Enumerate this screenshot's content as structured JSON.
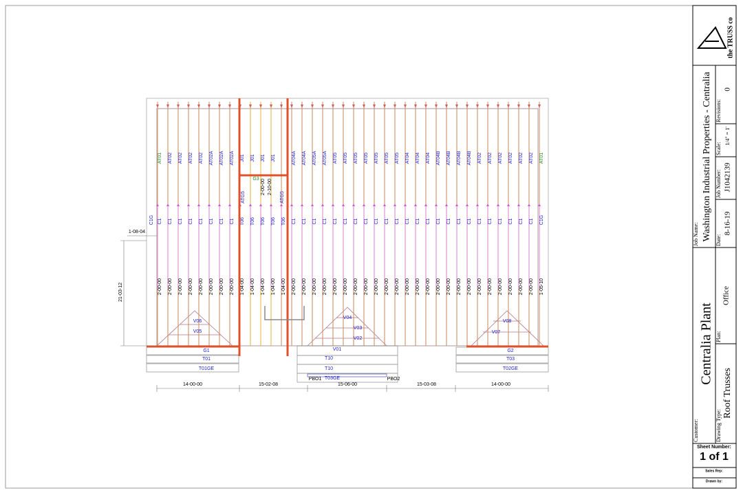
{
  "drawing": {
    "trusses": {
      "top": [
        "AT01",
        "AT02",
        "AT02",
        "AT02",
        "AT02",
        "AT02A",
        "AT02A",
        "AT02A",
        "J01",
        "J01",
        "J01",
        "J01",
        null,
        "AT04A",
        "AT04A",
        "AT05A",
        "AT05A",
        "AT05",
        "AT05",
        "AT05",
        "AT05",
        "AT05",
        "AT05",
        "AT05",
        "AT04",
        "AT04",
        "AT04",
        "AT04B",
        "AT04B",
        "AT04B",
        "AT04B",
        "AT02",
        "AT02",
        "AT02",
        "AT02",
        "AT02",
        "AT02",
        "AT01"
      ],
      "middle": [
        "C1",
        "C1",
        "C1",
        "C1",
        "C1",
        "C1",
        "C1",
        "C1",
        "T06",
        "T06",
        "T06",
        "T06",
        "T06",
        "C1",
        "C1",
        "C1",
        "C1",
        "C1",
        "C1",
        "C1",
        "C1",
        "C1",
        "C1",
        "C1",
        "C1",
        "C1",
        "C1",
        "C1",
        "C1",
        "C1",
        "C1",
        "C1",
        "C1",
        "C1",
        "C1",
        "C1",
        "C1",
        null
      ],
      "bottom": [
        "2-00-00",
        "2-00-00",
        "2-00-00",
        "2-00-00",
        "2-00-00",
        "2-00-00",
        "2-00-00",
        "2-00-00",
        "1-04-00",
        "1-04-00",
        "1-04-00",
        "1-04-00",
        "1-04-00",
        "2-00-00",
        "2-00-00",
        "2-00-00",
        "2-00-00",
        "2-00-00",
        "2-00-00",
        "2-00-00",
        "2-00-00",
        "2-00-00",
        "2-00-00",
        "2-00-00",
        "2-00-00",
        "2-00-00",
        "2-00-00",
        "2-00-00",
        "2-00-00",
        "2-00-00",
        "2-00-00",
        "2-00-00",
        "2-00-00",
        "2-00-00",
        "2-00-00",
        "2-00-00",
        "2-00-00",
        "1-05-10"
      ]
    },
    "labels": {
      "c1g_left": "C1G",
      "c1g_right": "C1G",
      "atg5_left": "ATG5",
      "atg5_right": "ATG5",
      "g3": "G3",
      "j_dims": [
        "2-00-00",
        "2-10-00"
      ]
    },
    "hips": {
      "left": {
        "valleys": [
          "V06",
          "V05"
        ],
        "girder": "G1",
        "truss": "T01",
        "gable": "T01GE"
      },
      "center": {
        "valleys": [
          "V04",
          "V03",
          "V02",
          "V01"
        ],
        "trusses": [
          "T10",
          "T10"
        ],
        "gable": "T03GE",
        "left_block": "PBO1",
        "right_block": "PBO2"
      },
      "right": {
        "valleys": [
          "V08",
          "V07"
        ],
        "girder": "G2",
        "truss": "T03",
        "gable": "T02GE"
      }
    },
    "dimensions": {
      "bottom": [
        "14-00-00",
        "15-02-08",
        "15-06-00",
        "15-03-08",
        "14-00-00"
      ],
      "overhang": "1-08-04",
      "span": "21-03-12"
    }
  },
  "title_block": {
    "logo": "the TRUSS co",
    "job_name_label": "Job Name:",
    "job_name": "Washington Industrial Properties - Centralia",
    "job_number_label": "Job Number:",
    "job_number": "J1042139",
    "date_label": "Date:",
    "date": "8-16-19",
    "scale_label": "Scale:",
    "scale": "1/4\" = 1'",
    "revisions_label": "Revisions:",
    "revisions": "0",
    "customer_label": "Customer:",
    "customer": "Centralia Plant",
    "drawing_type_label": "Drawing Type:",
    "drawing_type": "Roof Trusses",
    "plan_label": "Plan:",
    "plan": "Office",
    "sheet_number_label": "Sheet Number:",
    "sheet_number": "1 of 1",
    "sales_rep_label": "Sales Rep:",
    "drawn_by_label": "Drawn by:"
  }
}
